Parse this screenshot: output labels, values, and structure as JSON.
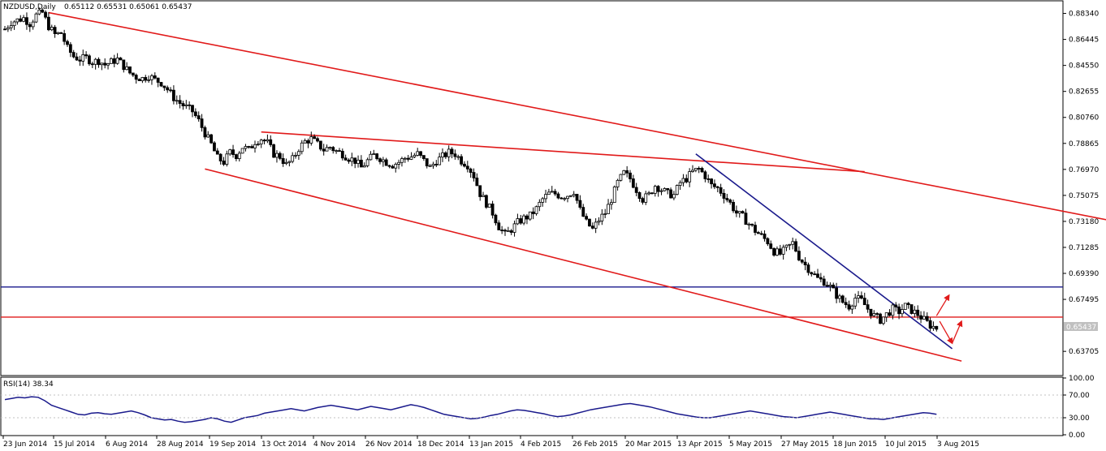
{
  "header": {
    "symbol_label": "NZDUSD,Daily",
    "ohlc_label": "0.65112 0.65531 0.65061 0.65437"
  },
  "colors": {
    "background": "#ffffff",
    "frame": "#000000",
    "candle": "#000000",
    "trend_red": "#e11a1a",
    "trend_blue": "#1a1a8c",
    "rsi_line": "#1a1a8c",
    "price_badge_bg": "#c0c0c0"
  },
  "chart_data": [
    {
      "type": "candlestick",
      "title": "NZDUSD,Daily",
      "ohlc_readout": "0.65112 0.65531 0.65061 0.65437",
      "ylim": [
        0.62,
        0.892
      ],
      "y_ticks": [
        "0.88340",
        "0.86445",
        "0.84550",
        "0.82655",
        "0.80760",
        "0.78865",
        "0.76970",
        "0.75075",
        "0.73180",
        "0.71285",
        "0.69390",
        "0.67495",
        "0.63705"
      ],
      "x_ticks": [
        "23 Jun 2014",
        "15 Jul 2014",
        "6 Aug 2014",
        "28 Aug 2014",
        "19 Sep 2014",
        "13 Oct 2014",
        "4 Nov 2014",
        "26 Nov 2014",
        "18 Dec 2014",
        "13 Jan 2015",
        "4 Feb 2015",
        "26 Feb 2015",
        "20 Mar 2015",
        "13 Apr 2015",
        "5 May 2015",
        "27 May 2015",
        "18 Jun 2015",
        "10 Jul 2015",
        "3 Aug 2015"
      ],
      "current_price": "0.65437",
      "close_path": [
        [
          0,
          0.872
        ],
        [
          2,
          0.877
        ],
        [
          6,
          0.88
        ],
        [
          8,
          0.876
        ],
        [
          10,
          0.882
        ],
        [
          12,
          0.884
        ],
        [
          14,
          0.874
        ],
        [
          16,
          0.868
        ],
        [
          18,
          0.869
        ],
        [
          20,
          0.858
        ],
        [
          22,
          0.852
        ],
        [
          24,
          0.85
        ],
        [
          26,
          0.851
        ],
        [
          28,
          0.848
        ],
        [
          30,
          0.849
        ],
        [
          32,
          0.846
        ],
        [
          34,
          0.848
        ],
        [
          36,
          0.85
        ],
        [
          38,
          0.845
        ],
        [
          40,
          0.84
        ],
        [
          42,
          0.837
        ],
        [
          44,
          0.836
        ],
        [
          46,
          0.838
        ],
        [
          48,
          0.835
        ],
        [
          50,
          0.833
        ],
        [
          52,
          0.828
        ],
        [
          54,
          0.822
        ],
        [
          56,
          0.818
        ],
        [
          58,
          0.815
        ],
        [
          60,
          0.812
        ],
        [
          62,
          0.805
        ],
        [
          64,
          0.796
        ],
        [
          66,
          0.788
        ],
        [
          68,
          0.778
        ],
        [
          70,
          0.775
        ],
        [
          72,
          0.782
        ],
        [
          74,
          0.78
        ],
        [
          76,
          0.786
        ],
        [
          78,
          0.784
        ],
        [
          80,
          0.79
        ],
        [
          82,
          0.792
        ],
        [
          84,
          0.789
        ],
        [
          86,
          0.781
        ],
        [
          88,
          0.779
        ],
        [
          90,
          0.773
        ],
        [
          92,
          0.777
        ],
        [
          94,
          0.785
        ],
        [
          96,
          0.79
        ],
        [
          98,
          0.792
        ],
        [
          100,
          0.788
        ],
        [
          102,
          0.784
        ],
        [
          104,
          0.786
        ],
        [
          106,
          0.783
        ],
        [
          108,
          0.781
        ],
        [
          110,
          0.778
        ],
        [
          112,
          0.776
        ],
        [
          114,
          0.771
        ],
        [
          116,
          0.776
        ],
        [
          118,
          0.78
        ],
        [
          120,
          0.778
        ],
        [
          122,
          0.775
        ],
        [
          124,
          0.773
        ],
        [
          126,
          0.775
        ],
        [
          128,
          0.778
        ],
        [
          130,
          0.779
        ],
        [
          132,
          0.781
        ],
        [
          134,
          0.776
        ],
        [
          136,
          0.771
        ],
        [
          138,
          0.776
        ],
        [
          140,
          0.779
        ],
        [
          142,
          0.782
        ],
        [
          144,
          0.781
        ],
        [
          146,
          0.776
        ],
        [
          148,
          0.773
        ],
        [
          150,
          0.765
        ],
        [
          152,
          0.752
        ],
        [
          154,
          0.745
        ],
        [
          156,
          0.738
        ],
        [
          158,
          0.728
        ],
        [
          160,
          0.722
        ],
        [
          162,
          0.726
        ],
        [
          164,
          0.731
        ],
        [
          166,
          0.734
        ],
        [
          168,
          0.736
        ],
        [
          170,
          0.741
        ],
        [
          172,
          0.748
        ],
        [
          174,
          0.752
        ],
        [
          176,
          0.752
        ],
        [
          178,
          0.75
        ],
        [
          180,
          0.751
        ],
        [
          182,
          0.754
        ],
        [
          184,
          0.74
        ],
        [
          186,
          0.731
        ],
        [
          188,
          0.726
        ],
        [
          190,
          0.733
        ],
        [
          192,
          0.738
        ],
        [
          194,
          0.748
        ],
        [
          196,
          0.76
        ],
        [
          198,
          0.767
        ],
        [
          200,
          0.763
        ],
        [
          202,
          0.755
        ],
        [
          204,
          0.748
        ],
        [
          206,
          0.751
        ],
        [
          208,
          0.758
        ],
        [
          210,
          0.755
        ],
        [
          212,
          0.752
        ],
        [
          214,
          0.751
        ],
        [
          216,
          0.76
        ],
        [
          218,
          0.763
        ],
        [
          220,
          0.768
        ],
        [
          222,
          0.77
        ],
        [
          224,
          0.765
        ],
        [
          226,
          0.758
        ],
        [
          228,
          0.756
        ],
        [
          230,
          0.751
        ],
        [
          232,
          0.745
        ],
        [
          234,
          0.738
        ],
        [
          236,
          0.735
        ],
        [
          238,
          0.73
        ],
        [
          240,
          0.725
        ],
        [
          242,
          0.721
        ],
        [
          244,
          0.717
        ],
        [
          246,
          0.71
        ],
        [
          248,
          0.708
        ],
        [
          250,
          0.712
        ],
        [
          252,
          0.716
        ],
        [
          254,
          0.706
        ],
        [
          256,
          0.7
        ],
        [
          258,
          0.695
        ],
        [
          260,
          0.69
        ],
        [
          262,
          0.688
        ],
        [
          264,
          0.684
        ],
        [
          266,
          0.678
        ],
        [
          268,
          0.673
        ],
        [
          270,
          0.67
        ],
        [
          272,
          0.676
        ],
        [
          274,
          0.674
        ],
        [
          276,
          0.668
        ],
        [
          278,
          0.663
        ],
        [
          280,
          0.66
        ],
        [
          282,
          0.664
        ],
        [
          284,
          0.668
        ],
        [
          286,
          0.666
        ],
        [
          288,
          0.67
        ],
        [
          290,
          0.667
        ],
        [
          292,
          0.664
        ],
        [
          294,
          0.66
        ],
        [
          296,
          0.656
        ],
        [
          298,
          0.654
        ]
      ],
      "trend_lines": [
        {
          "color": "red",
          "from": [
            14,
            0.884
          ],
          "to": [
            377,
            0.722
          ]
        },
        {
          "color": "red",
          "from": [
            82,
            0.797
          ],
          "to": [
            275,
            0.768
          ]
        },
        {
          "color": "red",
          "from": [
            64,
            0.77
          ],
          "to": [
            306,
            0.63
          ]
        },
        {
          "color": "blue",
          "from": [
            221,
            0.781
          ],
          "to": [
            303,
            0.639
          ]
        }
      ],
      "horizontal_lines": [
        {
          "color": "blue",
          "value": 0.684
        },
        {
          "color": "red",
          "value": 0.662
        }
      ],
      "arrows": [
        {
          "color": "red",
          "from": [
            299,
            0.659
          ],
          "to": [
            303,
            0.643
          ]
        },
        {
          "color": "red",
          "from": [
            303,
            0.643
          ],
          "to": [
            306,
            0.659
          ]
        },
        {
          "color": "red",
          "from": [
            298,
            0.663
          ],
          "to": [
            302,
            0.678
          ]
        }
      ]
    },
    {
      "type": "line",
      "title": "RSI(14) 38.34",
      "ylim": [
        0,
        100
      ],
      "y_ticks": [
        "100.00",
        "70.00",
        "30.00",
        "0.00"
      ],
      "values": [
        62,
        64,
        66,
        65,
        67,
        66,
        60,
        52,
        48,
        44,
        40,
        36,
        35,
        38,
        39,
        37,
        36,
        38,
        40,
        42,
        39,
        35,
        30,
        28,
        26,
        27,
        24,
        22,
        23,
        25,
        27,
        30,
        28,
        24,
        22,
        26,
        30,
        32,
        34,
        38,
        40,
        42,
        44,
        46,
        44,
        42,
        45,
        48,
        50,
        52,
        50,
        48,
        46,
        44,
        47,
        50,
        48,
        46,
        44,
        47,
        50,
        53,
        51,
        48,
        44,
        40,
        36,
        34,
        32,
        30,
        28,
        29,
        31,
        34,
        36,
        39,
        42,
        44,
        43,
        41,
        39,
        37,
        34,
        32,
        33,
        35,
        38,
        41,
        44,
        46,
        48,
        50,
        52,
        54,
        55,
        53,
        51,
        49,
        46,
        43,
        40,
        37,
        35,
        33,
        31,
        30,
        30,
        32,
        34,
        36,
        38,
        40,
        42,
        40,
        38,
        36,
        34,
        32,
        31,
        30,
        32,
        34,
        36,
        38,
        40,
        38,
        36,
        34,
        32,
        30,
        28,
        28,
        27,
        29,
        31,
        33,
        35,
        37,
        39,
        38,
        36
      ]
    }
  ]
}
